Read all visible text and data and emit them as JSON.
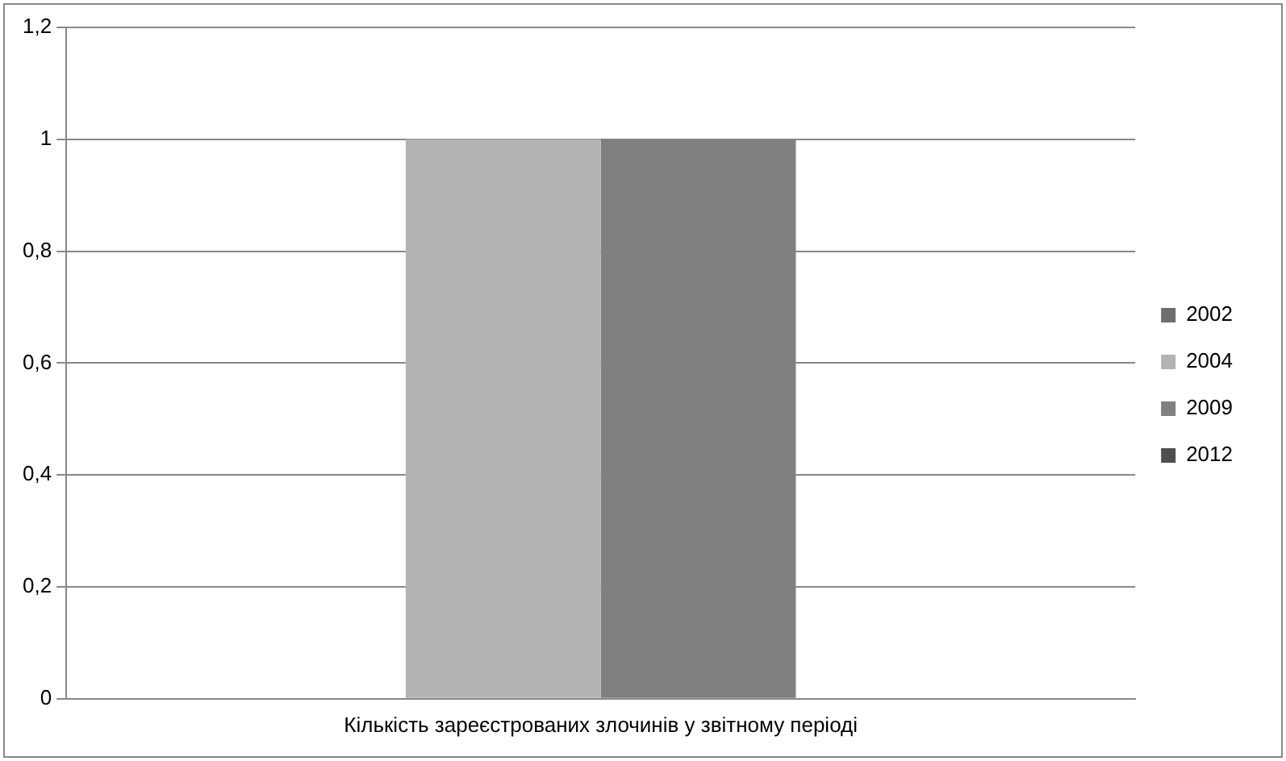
{
  "chart_data": {
    "type": "bar",
    "categories": [
      "Кількість зареєстрованих злочинів у звітному періоді"
    ],
    "series": [
      {
        "name": "2002",
        "color": "#6e6e6e",
        "values": [
          0
        ]
      },
      {
        "name": "2004",
        "color": "#b3b3b3",
        "values": [
          1
        ]
      },
      {
        "name": "2009",
        "color": "#808080",
        "values": [
          1
        ]
      },
      {
        "name": "2012",
        "color": "#4f4f4f",
        "values": [
          0
        ]
      }
    ],
    "ylim": [
      0,
      1.2
    ],
    "yticks": [
      0,
      {
        "value": 0.2,
        "label": "0,2"
      },
      {
        "value": 0.4,
        "label": "0,4"
      },
      {
        "value": 0.6,
        "label": "0,6"
      },
      {
        "value": 0.8,
        "label": "0,8"
      },
      1,
      {
        "value": 1.2,
        "label": "1,2"
      }
    ],
    "grid": "y",
    "legend": "right"
  }
}
